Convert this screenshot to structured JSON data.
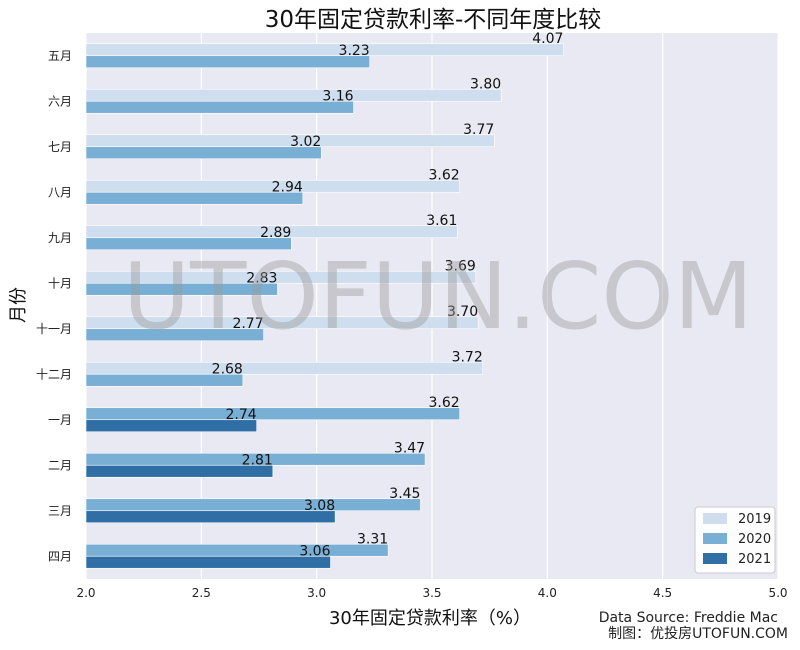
{
  "chart_data": {
    "type": "bar",
    "orientation": "horizontal",
    "title": "30年固定贷款利率-不同年度比较",
    "xlabel": "30年固定贷款利率（%）",
    "ylabel": "月份",
    "xlim": [
      2.0,
      5.0
    ],
    "xticks": [
      "2.0",
      "2.5",
      "3.0",
      "3.5",
      "4.0",
      "4.5",
      "5.0"
    ],
    "grid": true,
    "legend_position": "bottom-right",
    "categories": [
      "五月",
      "六月",
      "七月",
      "八月",
      "九月",
      "十月",
      "十一月",
      "十二月",
      "一月",
      "二月",
      "三月",
      "四月"
    ],
    "series": [
      {
        "name": "2019",
        "color": "#cfdeee",
        "values": [
          4.07,
          3.8,
          3.77,
          3.62,
          3.61,
          3.69,
          3.7,
          3.72,
          null,
          null,
          null,
          null
        ],
        "labels": [
          "4.07",
          "3.80",
          "3.77",
          "3.62",
          "3.61",
          "3.69",
          "3.70",
          "3.72",
          "",
          "",
          "",
          ""
        ]
      },
      {
        "name": "2020",
        "color": "#79afd4",
        "values": [
          3.23,
          3.16,
          3.02,
          2.94,
          2.89,
          2.83,
          2.77,
          2.68,
          3.62,
          3.47,
          3.45,
          3.31
        ],
        "labels": [
          "3.23",
          "3.16",
          "3.02",
          "2.94",
          "2.89",
          "2.83",
          "2.77",
          "2.68",
          "3.62",
          "3.47",
          "3.45",
          "3.31"
        ]
      },
      {
        "name": "2021",
        "color": "#2f6fa6",
        "values": [
          null,
          null,
          null,
          null,
          null,
          null,
          null,
          null,
          2.74,
          2.81,
          3.08,
          3.06
        ],
        "labels": [
          "",
          "",
          "",
          "",
          "",
          "",
          "",
          "",
          "2.74",
          "2.81",
          "3.08",
          "3.06"
        ]
      }
    ]
  },
  "watermark": "UTOFUN.COM",
  "source_line1": "Data Source: Freddie Mac",
  "source_line2": "制图：优投房UTOFUN.COM",
  "colors": {
    "plot_background": "#e9e9f3",
    "grid": "#ffffff"
  }
}
